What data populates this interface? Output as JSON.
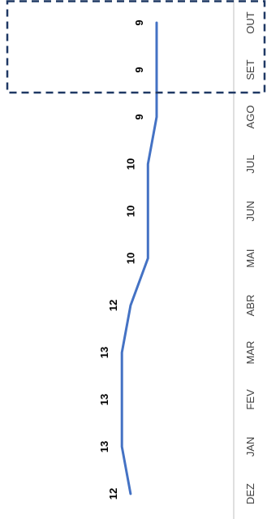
{
  "chart_data": {
    "type": "line",
    "title": "",
    "xlabel": "",
    "ylabel": "",
    "orientation": "rotated-90-clockwise",
    "categories": [
      "DEZ",
      "JAN",
      "FEV",
      "MAR",
      "ABR",
      "MAI",
      "JUN",
      "JUL",
      "AGO",
      "SET",
      "OUT"
    ],
    "series": [
      {
        "values": [
          12,
          13,
          13,
          13,
          12,
          10,
          10,
          10,
          9,
          9,
          9
        ]
      }
    ],
    "data_labels": [
      "12",
      "13",
      "13",
      "13",
      "12",
      "10",
      "10",
      "10",
      "9",
      "9",
      "9"
    ],
    "ylim": [
      6,
      18
    ],
    "grid": false,
    "line_color": "#4472C4",
    "axis_color": "#BFBFBF",
    "highlight": {
      "from_category": "SET",
      "to_category": "OUT",
      "style": "dashed-box",
      "color": "#1F3864"
    }
  }
}
